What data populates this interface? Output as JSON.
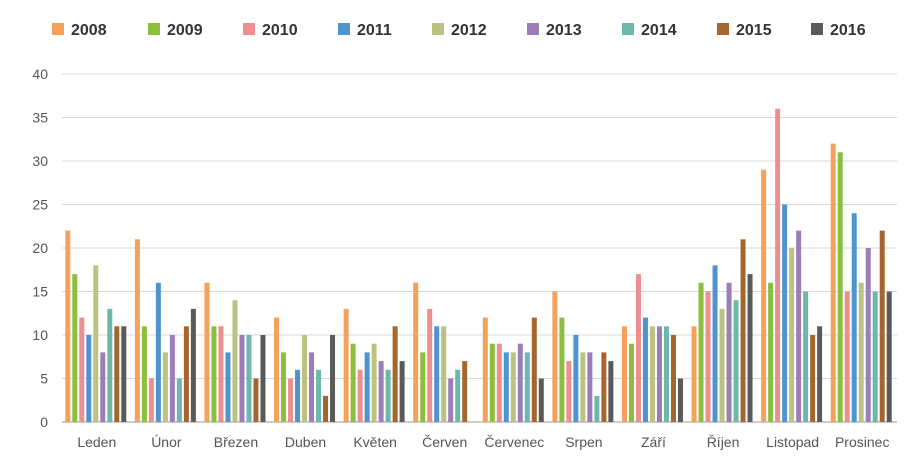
{
  "chart_data": {
    "type": "bar",
    "categories": [
      "Leden",
      "Únor",
      "Březen",
      "Duben",
      "Květen",
      "Červen",
      "Červenec",
      "Srpen",
      "Září",
      "Říjen",
      "Listopad",
      "Prosinec"
    ],
    "series": [
      {
        "name": "2008",
        "color": "#F4A259",
        "values": [
          22,
          21,
          16,
          12,
          13,
          16,
          12,
          15,
          11,
          11,
          29,
          32
        ]
      },
      {
        "name": "2009",
        "color": "#8DBF3F",
        "values": [
          17,
          11,
          11,
          8,
          9,
          8,
          9,
          12,
          9,
          16,
          16,
          31
        ]
      },
      {
        "name": "2010",
        "color": "#EE8F8F",
        "values": [
          12,
          5,
          11,
          5,
          6,
          13,
          9,
          7,
          17,
          15,
          36,
          15
        ]
      },
      {
        "name": "2011",
        "color": "#4F94CD",
        "values": [
          10,
          16,
          8,
          6,
          8,
          11,
          8,
          10,
          12,
          18,
          25,
          24
        ]
      },
      {
        "name": "2012",
        "color": "#BCC281",
        "values": [
          18,
          8,
          14,
          10,
          9,
          11,
          8,
          8,
          11,
          13,
          20,
          16
        ]
      },
      {
        "name": "2013",
        "color": "#9B7DB8",
        "values": [
          8,
          10,
          10,
          8,
          7,
          5,
          9,
          8,
          11,
          16,
          22,
          20
        ]
      },
      {
        "name": "2014",
        "color": "#6CB8AC",
        "values": [
          13,
          5,
          10,
          6,
          6,
          6,
          8,
          3,
          11,
          14,
          15,
          15
        ]
      },
      {
        "name": "2015",
        "color": "#A5652E",
        "values": [
          11,
          11,
          5,
          3,
          11,
          7,
          12,
          8,
          10,
          21,
          10,
          22
        ]
      },
      {
        "name": "2016",
        "color": "#5A5A5A",
        "values": [
          11,
          13,
          10,
          10,
          7,
          null,
          5,
          7,
          5,
          17,
          11,
          15
        ]
      }
    ],
    "ylim": [
      0,
      40
    ],
    "yticks": [
      0,
      5,
      10,
      15,
      20,
      25,
      30,
      35,
      40
    ],
    "grid": true,
    "legend": "top",
    "title": "",
    "xlabel": "",
    "ylabel": ""
  }
}
